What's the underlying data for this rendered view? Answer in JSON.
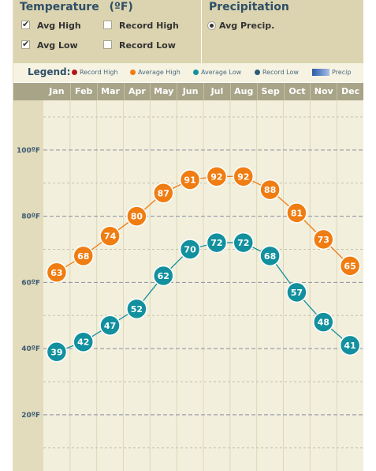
{
  "panel": {
    "temperature": {
      "title": "Temperature",
      "unit": "(ºF)",
      "options": [
        {
          "label": "Avg High",
          "checked": true
        },
        {
          "label": "Record High",
          "checked": false
        },
        {
          "label": "Avg Low",
          "checked": true
        },
        {
          "label": "Record Low",
          "checked": false
        }
      ]
    },
    "precipitation": {
      "title": "Precipitation",
      "options": [
        {
          "label": "Avg Precip.",
          "selected": true
        }
      ]
    }
  },
  "legend": {
    "title": "Legend:",
    "items": [
      {
        "label": "Record High",
        "color": "#b01818"
      },
      {
        "label": "Average High",
        "color": "#f07d12"
      },
      {
        "label": "Average Low",
        "color": "#12909e"
      },
      {
        "label": "Record Low",
        "color": "#2e5a78"
      },
      {
        "label": "Precip",
        "color": "#2a5aa8"
      }
    ]
  },
  "colors": {
    "avg_high": "#f07d12",
    "avg_low": "#12909e",
    "panel_bg": "#dcd4b0",
    "month_header": "#a8a488",
    "plot_bg": "#f2efdc",
    "axis_bg": "#e2dcbc"
  },
  "chart_data": {
    "type": "line",
    "categories": [
      "Jan",
      "Feb",
      "Mar",
      "Apr",
      "May",
      "Jun",
      "Jul",
      "Aug",
      "Sep",
      "Oct",
      "Nov",
      "Dec"
    ],
    "series": [
      {
        "name": "Average High",
        "values": [
          63,
          68,
          74,
          80,
          87,
          91,
          92,
          92,
          88,
          81,
          73,
          65
        ]
      },
      {
        "name": "Average Low",
        "values": [
          39,
          42,
          47,
          52,
          62,
          70,
          72,
          72,
          68,
          57,
          48,
          41
        ]
      }
    ],
    "yticks": [
      "20ºF",
      "40ºF",
      "60ºF",
      "80ºF",
      "100ºF"
    ],
    "ytick_values": [
      20,
      40,
      60,
      80,
      100
    ],
    "ylim": [
      3,
      115
    ],
    "grid": true
  }
}
